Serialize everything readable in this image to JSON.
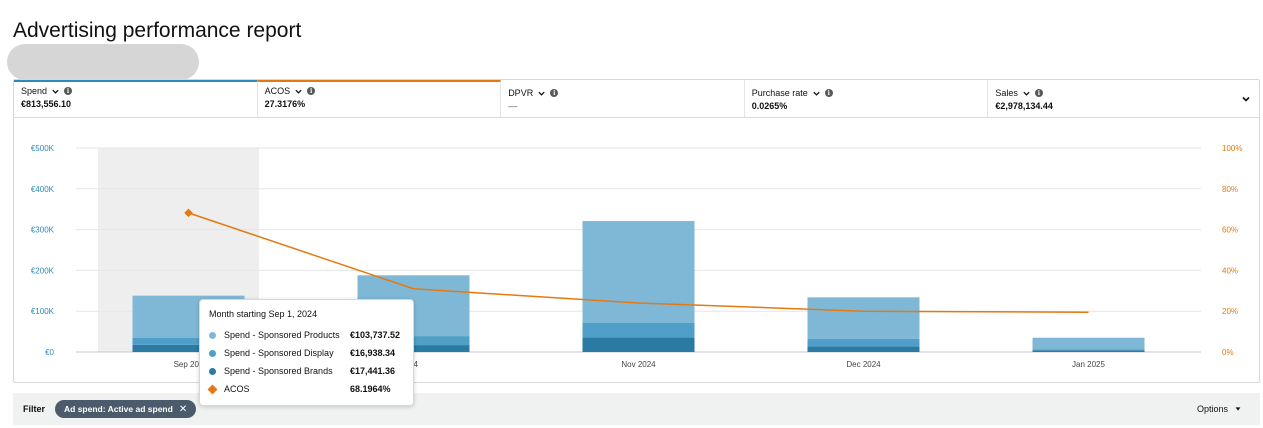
{
  "page": {
    "title": "Advertising performance report"
  },
  "metrics": [
    {
      "label": "Spend",
      "value": "€813,556.10"
    },
    {
      "label": "ACOS",
      "value": "27.3176%"
    },
    {
      "label": "DPVR",
      "value": "—"
    },
    {
      "label": "Purchase rate",
      "value": "0.0265%"
    },
    {
      "label": "Sales",
      "value": "€2,978,134.44"
    }
  ],
  "colors": {
    "sponsored_products": "#7eb8d6",
    "sponsored_display": "#4f9fc8",
    "sponsored_brands": "#2a7aa3",
    "acos": "#e47911",
    "highlight": "#eeeeee"
  },
  "chart_data": {
    "type": "bar",
    "categories": [
      "Sep 2024",
      "Oct 2024",
      "Nov 2024",
      "Dec 2024",
      "Jan 2025"
    ],
    "category_labels": [
      "Sep 202",
      "24",
      "Nov 2024",
      "Dec 2024",
      "Jan 2025"
    ],
    "series": [
      {
        "name": "Spend - Sponsored Brands",
        "values": [
          17441.36,
          17000,
          36000,
          14000,
          4000
        ]
      },
      {
        "name": "Spend - Sponsored Display",
        "values": [
          16938.34,
          22000,
          36000,
          18000,
          3000
        ]
      },
      {
        "name": "Spend - Sponsored Products",
        "values": [
          103737.52,
          149000,
          249000,
          102000,
          28000
        ]
      }
    ],
    "line": {
      "name": "ACOS",
      "values": [
        68.1964,
        31,
        24,
        20,
        19.5
      ]
    },
    "y_left": {
      "ticks": [
        "€0",
        "€100K",
        "€200K",
        "€300K",
        "€400K",
        "€500K"
      ],
      "lim": [
        0,
        500000
      ]
    },
    "y_right": {
      "ticks": [
        "0%",
        "20%",
        "40%",
        "60%",
        "80%",
        "100%"
      ],
      "lim": [
        0,
        100
      ]
    },
    "highlighted_category": 0,
    "grid": true
  },
  "tooltip": {
    "title": "Month starting Sep 1, 2024",
    "rows": [
      {
        "name": "Spend - Sponsored Products",
        "value": "€103,737.52",
        "marker": "dot",
        "color": "#7eb8d6"
      },
      {
        "name": "Spend - Sponsored Display",
        "value": "€16,938.34",
        "marker": "dot",
        "color": "#4f9fc8"
      },
      {
        "name": "Spend - Sponsored Brands",
        "value": "€17,441.36",
        "marker": "dot",
        "color": "#2a7aa3"
      },
      {
        "name": "ACOS",
        "value": "68.1964%",
        "marker": "diamond",
        "color": "#e47911"
      }
    ]
  },
  "filter": {
    "label": "Filter",
    "chip": "Ad spend: Active ad spend",
    "options_label": "Options"
  }
}
